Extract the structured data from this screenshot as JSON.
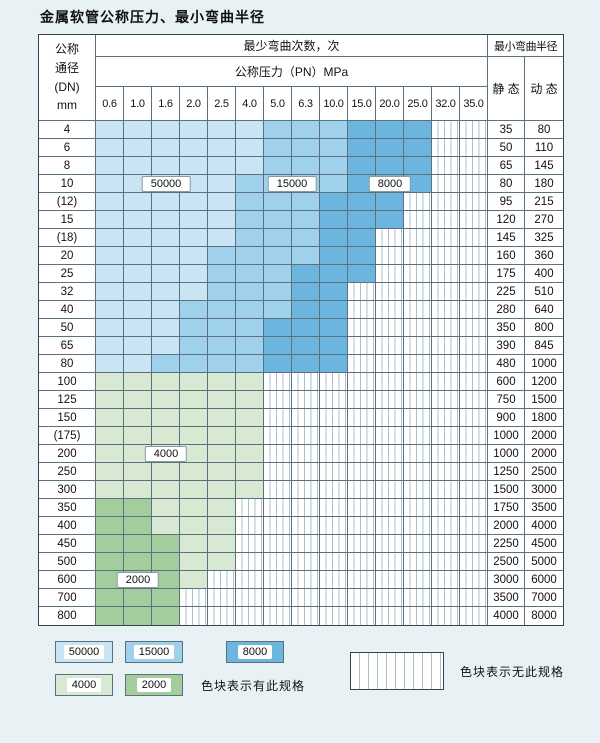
{
  "title": "金属软管公称压力、最小弯曲半径",
  "colors": {
    "page_bg": "#e8f2f4",
    "cycles": {
      "50000": "#c9e5f4",
      "15000": "#9fd0ec",
      "8000": "#6cb5de",
      "4000": "#d7e9d3",
      "2000": "#a3cd9c"
    }
  },
  "table": {
    "header": {
      "dn_lines": [
        "公称",
        "通径",
        "(DN)",
        "mm"
      ],
      "cycles_title": "最少弯曲次数，次",
      "pressure_title": "公称压力（PN）MPa",
      "radius_title": "最小弯曲半径",
      "static_label": "静 态",
      "dynamic_label": "动 态",
      "pressures": [
        "0.6",
        "1.0",
        "1.6",
        "2.0",
        "2.5",
        "4.0",
        "5.0",
        "6.3",
        "10.0",
        "15.0",
        "20.0",
        "25.0",
        "32.0",
        "35.0"
      ]
    },
    "rows": [
      {
        "dn": "4",
        "static": "35",
        "dynamic": "80",
        "spans": [
          [
            "50000",
            0,
            5
          ],
          [
            "15000",
            6,
            8
          ],
          [
            "8000",
            9,
            11
          ]
        ]
      },
      {
        "dn": "6",
        "static": "50",
        "dynamic": "110",
        "spans": [
          [
            "50000",
            0,
            5
          ],
          [
            "15000",
            6,
            8
          ],
          [
            "8000",
            9,
            11
          ]
        ]
      },
      {
        "dn": "8",
        "static": "65",
        "dynamic": "145",
        "spans": [
          [
            "50000",
            0,
            5
          ],
          [
            "15000",
            6,
            8
          ],
          [
            "8000",
            9,
            11
          ]
        ]
      },
      {
        "dn": "10",
        "static": "80",
        "dynamic": "180",
        "spans": [
          [
            "50000",
            0,
            4
          ],
          [
            "15000",
            5,
            8
          ],
          [
            "8000",
            9,
            11
          ]
        ]
      },
      {
        "dn": "(12)",
        "static": "95",
        "dynamic": "215",
        "spans": [
          [
            "50000",
            0,
            4
          ],
          [
            "15000",
            5,
            7
          ],
          [
            "8000",
            8,
            10
          ]
        ]
      },
      {
        "dn": "15",
        "static": "120",
        "dynamic": "270",
        "spans": [
          [
            "50000",
            0,
            4
          ],
          [
            "15000",
            5,
            7
          ],
          [
            "8000",
            8,
            10
          ]
        ]
      },
      {
        "dn": "(18)",
        "static": "145",
        "dynamic": "325",
        "spans": [
          [
            "50000",
            0,
            4
          ],
          [
            "15000",
            5,
            7
          ],
          [
            "8000",
            8,
            9
          ]
        ]
      },
      {
        "dn": "20",
        "static": "160",
        "dynamic": "360",
        "spans": [
          [
            "50000",
            0,
            3
          ],
          [
            "15000",
            4,
            7
          ],
          [
            "8000",
            8,
            9
          ]
        ]
      },
      {
        "dn": "25",
        "static": "175",
        "dynamic": "400",
        "spans": [
          [
            "50000",
            0,
            3
          ],
          [
            "15000",
            4,
            6
          ],
          [
            "8000",
            7,
            9
          ]
        ]
      },
      {
        "dn": "32",
        "static": "225",
        "dynamic": "510",
        "spans": [
          [
            "50000",
            0,
            3
          ],
          [
            "15000",
            4,
            6
          ],
          [
            "8000",
            7,
            8
          ]
        ]
      },
      {
        "dn": "40",
        "static": "280",
        "dynamic": "640",
        "spans": [
          [
            "50000",
            0,
            2
          ],
          [
            "15000",
            3,
            6
          ],
          [
            "8000",
            7,
            8
          ]
        ]
      },
      {
        "dn": "50",
        "static": "350",
        "dynamic": "800",
        "spans": [
          [
            "50000",
            0,
            2
          ],
          [
            "15000",
            3,
            5
          ],
          [
            "8000",
            6,
            8
          ]
        ]
      },
      {
        "dn": "65",
        "static": "390",
        "dynamic": "845",
        "spans": [
          [
            "50000",
            0,
            2
          ],
          [
            "15000",
            3,
            5
          ],
          [
            "8000",
            6,
            8
          ]
        ]
      },
      {
        "dn": "80",
        "static": "480",
        "dynamic": "1000",
        "spans": [
          [
            "50000",
            0,
            1
          ],
          [
            "15000",
            2,
            5
          ],
          [
            "8000",
            6,
            8
          ]
        ]
      },
      {
        "dn": "100",
        "static": "600",
        "dynamic": "1200",
        "spans": [
          [
            "4000",
            0,
            5
          ]
        ]
      },
      {
        "dn": "125",
        "static": "750",
        "dynamic": "1500",
        "spans": [
          [
            "4000",
            0,
            5
          ]
        ]
      },
      {
        "dn": "150",
        "static": "900",
        "dynamic": "1800",
        "spans": [
          [
            "4000",
            0,
            5
          ]
        ]
      },
      {
        "dn": "(175)",
        "static": "1000",
        "dynamic": "2000",
        "spans": [
          [
            "4000",
            0,
            5
          ]
        ]
      },
      {
        "dn": "200",
        "static": "1000",
        "dynamic": "2000",
        "spans": [
          [
            "4000",
            0,
            5
          ]
        ]
      },
      {
        "dn": "250",
        "static": "1250",
        "dynamic": "2500",
        "spans": [
          [
            "4000",
            0,
            5
          ]
        ]
      },
      {
        "dn": "300",
        "static": "1500",
        "dynamic": "3000",
        "spans": [
          [
            "4000",
            0,
            5
          ]
        ]
      },
      {
        "dn": "350",
        "static": "1750",
        "dynamic": "3500",
        "spans": [
          [
            "2000",
            0,
            1
          ],
          [
            "4000",
            2,
            4
          ]
        ]
      },
      {
        "dn": "400",
        "static": "2000",
        "dynamic": "4000",
        "spans": [
          [
            "2000",
            0,
            1
          ],
          [
            "4000",
            2,
            4
          ]
        ]
      },
      {
        "dn": "450",
        "static": "2250",
        "dynamic": "4500",
        "spans": [
          [
            "2000",
            0,
            2
          ],
          [
            "4000",
            3,
            4
          ]
        ]
      },
      {
        "dn": "500",
        "static": "2500",
        "dynamic": "5000",
        "spans": [
          [
            "2000",
            0,
            2
          ],
          [
            "4000",
            3,
            4
          ]
        ]
      },
      {
        "dn": "600",
        "static": "3000",
        "dynamic": "6000",
        "spans": [
          [
            "2000",
            0,
            2
          ],
          [
            "4000",
            3,
            3
          ]
        ]
      },
      {
        "dn": "700",
        "static": "3500",
        "dynamic": "7000",
        "spans": [
          [
            "2000",
            0,
            2
          ]
        ]
      },
      {
        "dn": "800",
        "static": "4000",
        "dynamic": "8000",
        "spans": [
          [
            "2000",
            0,
            2
          ]
        ]
      }
    ]
  },
  "overlays": [
    {
      "label": "50000",
      "row": 3,
      "col": 2
    },
    {
      "label": "15000",
      "row": 3,
      "col": 6.5
    },
    {
      "label": "8000",
      "row": 3,
      "col": 10
    },
    {
      "label": "4000",
      "row": 18,
      "col": 2
    },
    {
      "label": "2000",
      "row": 25,
      "col": 1
    }
  ],
  "legend": {
    "items": [
      {
        "label": "50000",
        "color_key": "50000"
      },
      {
        "label": "15000",
        "color_key": "15000"
      },
      {
        "label": "8000",
        "color_key": "8000"
      },
      {
        "label": "4000",
        "color_key": "4000"
      },
      {
        "label": "2000",
        "color_key": "2000"
      }
    ],
    "has_spec_text": "色块表示有此规格",
    "no_spec_text": "色块表示无此规格"
  }
}
